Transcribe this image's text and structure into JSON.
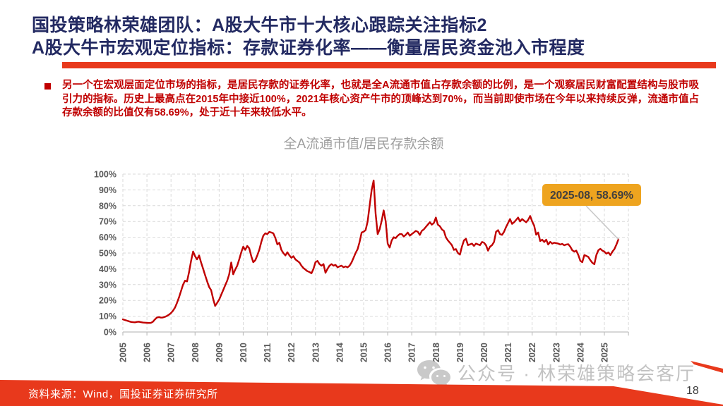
{
  "slide": {
    "title_line1": "国投策略林荣雄团队：A股大牛市十大核心跟踪关注指标2",
    "title_line2": "A股大牛市宏观定位指标：存款证券化率——衡量居民资金池入市程度",
    "bullet_text": "另一个在宏观层面定位市场的指标，是居民存款的证券化率，也就是全A流通市值占存款余额的比例，是一个观察居民财富配置结构与股市吸引力的指标。历史上最高点在2015年中接近100%，2021年核心资产牛市的顶峰达到70%，而当前即使市场在今年以来持续反弹，流通市值占存款余额的比值仅有58.69%，处于近十年来较低水平。",
    "source_text": "资料来源：Wind，国投证券证券研究所",
    "watermark_text": "公众号 · 林荣雄策略会客厅",
    "page_number": "18"
  },
  "colors": {
    "title_navy": "#232a62",
    "body_red": "#c00000",
    "accent_red": "#e8391c",
    "line_red": "#c00000",
    "grid_gray": "#d9d9d9",
    "axis_gray": "#bfbfbf",
    "tick_label_gray": "#595959",
    "chart_title_gray": "#9e9e9e",
    "annotation_gold": "#eea41f",
    "annotation_text": "#403f3f",
    "leader_gray": "#c9c9c9",
    "watermark_gray": "#b8b8b8"
  },
  "chart_data": {
    "type": "line",
    "title": "全A流通市值/居民存款余额",
    "xlabel": "",
    "ylabel": "",
    "ylim": [
      0,
      100
    ],
    "grid": "dashed",
    "legend": "none",
    "x_start": "2005-01",
    "x_end": "2025-08",
    "x_tick_labels": [
      "2005",
      "2006",
      "2007",
      "2008",
      "2009",
      "2010",
      "2011",
      "2012",
      "2013",
      "2014",
      "2015",
      "2016",
      "2017",
      "2018",
      "2019",
      "2020",
      "2021",
      "2022",
      "2023",
      "2024",
      "2025"
    ],
    "y_tick_labels": [
      "0%",
      "10%",
      "20%",
      "30%",
      "40%",
      "50%",
      "60%",
      "70%",
      "80%",
      "90%",
      "100%"
    ],
    "annotation": {
      "label": "2025-08, 58.69%",
      "date": "2025-08",
      "value": 58.69
    },
    "series": [
      {
        "name": "全A流通市值/居民存款余额",
        "unit": "%",
        "frequency": "monthly",
        "values": [
          8.0,
          7.6,
          7.2,
          6.8,
          6.4,
          6.2,
          6.1,
          6.4,
          6.5,
          6.2,
          6.0,
          5.9,
          5.8,
          5.7,
          5.8,
          6.5,
          8.0,
          9.2,
          9.4,
          9.1,
          9.2,
          9.6,
          10.2,
          11.0,
          12.0,
          13.5,
          15.5,
          18.5,
          22.0,
          26.0,
          30.0,
          32.5,
          32.0,
          38.0,
          45.0,
          51.0,
          48.0,
          46.0,
          48.5,
          44.0,
          40.0,
          36.0,
          32.0,
          28.5,
          26.5,
          21.0,
          16.5,
          18.5,
          20.5,
          23.5,
          26.5,
          29.5,
          32.5,
          36.5,
          44.0,
          36.5,
          39.5,
          42.0,
          46.0,
          50.5,
          54.0,
          52.0,
          54.5,
          53.0,
          48.0,
          44.2,
          45.5,
          48.5,
          52.0,
          57.0,
          61.0,
          62.5,
          62.0,
          63.4,
          63.0,
          62.5,
          59.5,
          55.5,
          56.5,
          52.0,
          50.0,
          48.5,
          50.5,
          48.5,
          47.0,
          48.0,
          46.0,
          45.0,
          44.0,
          42.0,
          40.5,
          39.5,
          38.5,
          38.0,
          37.2,
          40.0,
          44.2,
          45.0,
          43.0,
          42.0,
          43.0,
          37.5,
          40.0,
          42.0,
          43.0,
          42.0,
          42.5,
          41.0,
          41.5,
          42.0,
          41.0,
          41.5,
          41.0,
          42.0,
          44.0,
          47.0,
          50.0,
          52.5,
          57.0,
          63.0,
          63.5,
          64.5,
          70.0,
          80.0,
          90.0,
          96.0,
          75.0,
          62.0,
          65.0,
          70.5,
          77.0,
          70.0,
          56.0,
          53.5,
          58.0,
          60.0,
          59.5,
          61.0,
          62.0,
          62.0,
          60.5,
          61.5,
          63.0,
          61.0,
          62.0,
          63.0,
          64.0,
          63.5,
          61.5,
          64.0,
          65.0,
          66.5,
          68.0,
          69.5,
          68.0,
          69.0,
          72.5,
          68.0,
          67.0,
          65.0,
          64.0,
          60.0,
          58.0,
          56.5,
          55.0,
          52.0,
          52.5,
          50.0,
          49.0,
          54.0,
          58.0,
          59.0,
          55.0,
          55.5,
          56.0,
          54.5,
          56.0,
          55.5,
          55.0,
          57.0,
          56.5,
          55.0,
          51.5,
          54.0,
          55.0,
          57.0,
          63.5,
          64.5,
          62.0,
          61.5,
          63.5,
          66.5,
          69.0,
          71.5,
          68.5,
          69.5,
          71.0,
          72.5,
          70.0,
          71.5,
          70.5,
          69.5,
          71.0,
          73.5,
          70.0,
          67.4,
          61.6,
          63.0,
          57.6,
          58.5,
          57.0,
          58.5,
          55.4,
          57.1,
          56.0,
          56.5,
          56.3,
          56.0,
          55.4,
          55.8,
          54.9,
          55.4,
          55.6,
          54.0,
          51.8,
          50.9,
          51.5,
          48.7,
          45.1,
          44.2,
          48.7,
          48.2,
          47.5,
          45.5,
          43.8,
          42.9,
          48.7,
          51.8,
          52.7,
          51.5,
          50.9,
          49.6,
          50.4,
          48.7,
          50.9,
          52.5,
          55.4,
          58.69
        ]
      }
    ]
  }
}
